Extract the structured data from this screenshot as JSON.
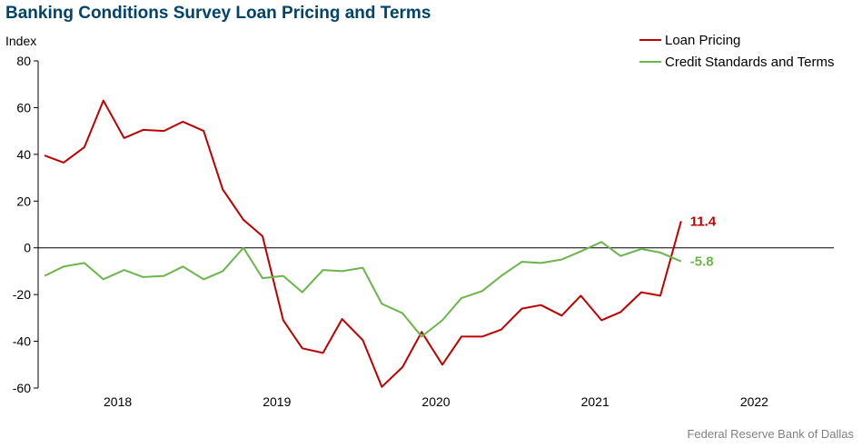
{
  "chart_data": {
    "type": "line",
    "title": "Banking Conditions Survey Loan Pricing and Terms",
    "ylabel": "Index",
    "source": "Federal Reserve Bank of Dallas",
    "ylim": [
      -60,
      80
    ],
    "y_ticks": [
      80,
      60,
      40,
      20,
      0,
      -20,
      -40,
      -60
    ],
    "xlim": [
      2017.5,
      2022.5
    ],
    "x_ticks": [
      {
        "label": "2018",
        "value": 2018.0
      },
      {
        "label": "2019",
        "value": 2019.0
      },
      {
        "label": "2020",
        "value": 2020.0
      },
      {
        "label": "2021",
        "value": 2021.0
      },
      {
        "label": "2022",
        "value": 2022.0
      }
    ],
    "legend_position": "top-right",
    "grid": false,
    "series": [
      {
        "name": "Loan Pricing",
        "color": "#c00000",
        "end_label": "11.4",
        "x": [
          2017.54,
          2017.66,
          2017.79,
          2017.91,
          2018.04,
          2018.16,
          2018.29,
          2018.41,
          2018.54,
          2018.66,
          2018.79,
          2018.91,
          2019.04,
          2019.16,
          2019.29,
          2019.41,
          2019.54,
          2019.66,
          2019.79,
          2019.91,
          2020.04,
          2020.16,
          2020.29,
          2020.41,
          2020.54,
          2020.66,
          2020.79,
          2020.91,
          2021.04,
          2021.16,
          2021.29,
          2021.41,
          2021.54
        ],
        "values": [
          39.5,
          36.5,
          43,
          63,
          47,
          50.5,
          50,
          54,
          50,
          25,
          12,
          5,
          -31,
          -43,
          -45,
          -30.5,
          -39.5,
          -59.5,
          -51,
          -36,
          -50,
          -38,
          -38,
          -35,
          -26,
          -24.5,
          -29,
          -20.5,
          -31,
          -27.5,
          -19,
          -20.5,
          11.4
        ]
      },
      {
        "name": "Credit Standards and Terms",
        "color": "#6ab64a",
        "end_label": "-5.8",
        "x": [
          2017.54,
          2017.66,
          2017.79,
          2017.91,
          2018.04,
          2018.16,
          2018.29,
          2018.41,
          2018.54,
          2018.66,
          2018.79,
          2018.91,
          2019.04,
          2019.16,
          2019.29,
          2019.41,
          2019.54,
          2019.66,
          2019.79,
          2019.91,
          2020.04,
          2020.16,
          2020.29,
          2020.41,
          2020.54,
          2020.66,
          2020.79,
          2020.91,
          2021.04,
          2021.16,
          2021.29,
          2021.41,
          2021.54
        ],
        "values": [
          -12,
          -8,
          -6.5,
          -13.5,
          -9.5,
          -12.5,
          -12,
          -8,
          -13.5,
          -10,
          0,
          -13,
          -12,
          -19,
          -9.5,
          -10,
          -8.5,
          -24,
          -28,
          -38,
          -31,
          -21.5,
          -18.5,
          -12,
          -6,
          -6.5,
          -5,
          -1.5,
          2.5,
          -3.5,
          -0.5,
          -2,
          -5.8
        ]
      }
    ]
  }
}
